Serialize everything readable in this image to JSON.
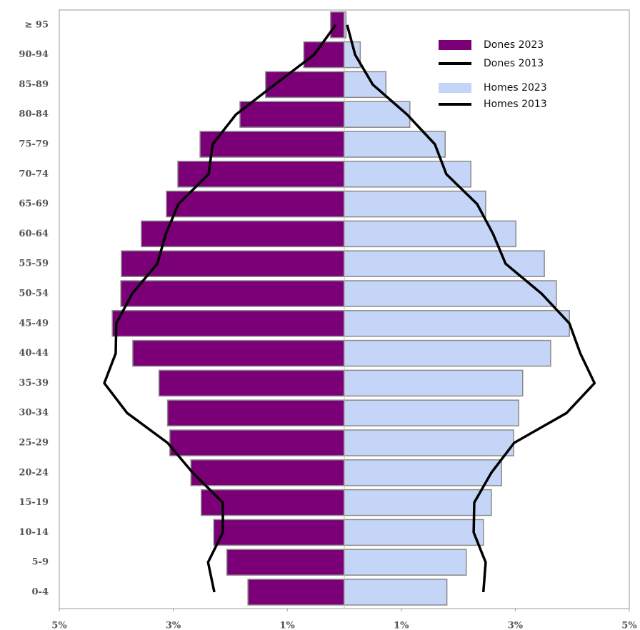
{
  "chart_data": {
    "type": "bar",
    "orientation": "horizontal",
    "categories": [
      "0-4",
      "5-9",
      "10-14",
      "15-19",
      "20-24",
      "25-29",
      "30-34",
      "35-39",
      "40-44",
      "45-49",
      "50-54",
      "55-59",
      "60-64",
      "65-69",
      "70-74",
      "75-79",
      "80-84",
      "85-89",
      "90-94",
      "≥ 95"
    ],
    "series": [
      {
        "name": "Dones 2023",
        "style": "bar",
        "color": "#7b0078",
        "values": [
          -1.69,
          -2.06,
          -2.29,
          -2.51,
          -2.69,
          -3.06,
          -3.1,
          -3.25,
          -3.71,
          -4.07,
          -3.92,
          -3.91,
          -3.56,
          -3.12,
          -2.92,
          -2.53,
          -1.83,
          -1.38,
          -0.71,
          -0.24
        ]
      },
      {
        "name": "Dones 2013",
        "style": "line",
        "color": "#000000",
        "values": [
          -2.28,
          -2.39,
          -2.13,
          -2.13,
          -2.66,
          -3.1,
          -3.81,
          -4.21,
          -4.01,
          -4.0,
          -3.72,
          -3.28,
          -3.13,
          -2.91,
          -2.38,
          -2.31,
          -1.9,
          -1.22,
          -0.53,
          -0.15
        ]
      },
      {
        "name": "Homes 2023",
        "style": "bar",
        "color": "#c5d5f7",
        "values": [
          1.8,
          2.14,
          2.44,
          2.58,
          2.76,
          2.97,
          3.06,
          3.13,
          3.62,
          3.95,
          3.72,
          3.51,
          3.01,
          2.48,
          2.22,
          1.77,
          1.15,
          0.73,
          0.28,
          0.03
        ]
      },
      {
        "name": "Homes 2013",
        "style": "line",
        "color": "#000000",
        "values": [
          2.44,
          2.48,
          2.27,
          2.28,
          2.58,
          2.98,
          3.9,
          4.39,
          4.14,
          3.95,
          3.46,
          2.83,
          2.61,
          2.33,
          1.79,
          1.59,
          1.1,
          0.5,
          0.19,
          0.05
        ]
      }
    ],
    "xlim": [
      -5,
      5
    ],
    "xticks": [
      {
        "value": -5,
        "label": "5%"
      },
      {
        "value": -3,
        "label": "3%"
      },
      {
        "value": -1,
        "label": "1%"
      },
      {
        "value": 1,
        "label": "1%"
      },
      {
        "value": 3,
        "label": "3%"
      },
      {
        "value": 5,
        "label": "5%"
      }
    ],
    "legend": "top-right"
  }
}
